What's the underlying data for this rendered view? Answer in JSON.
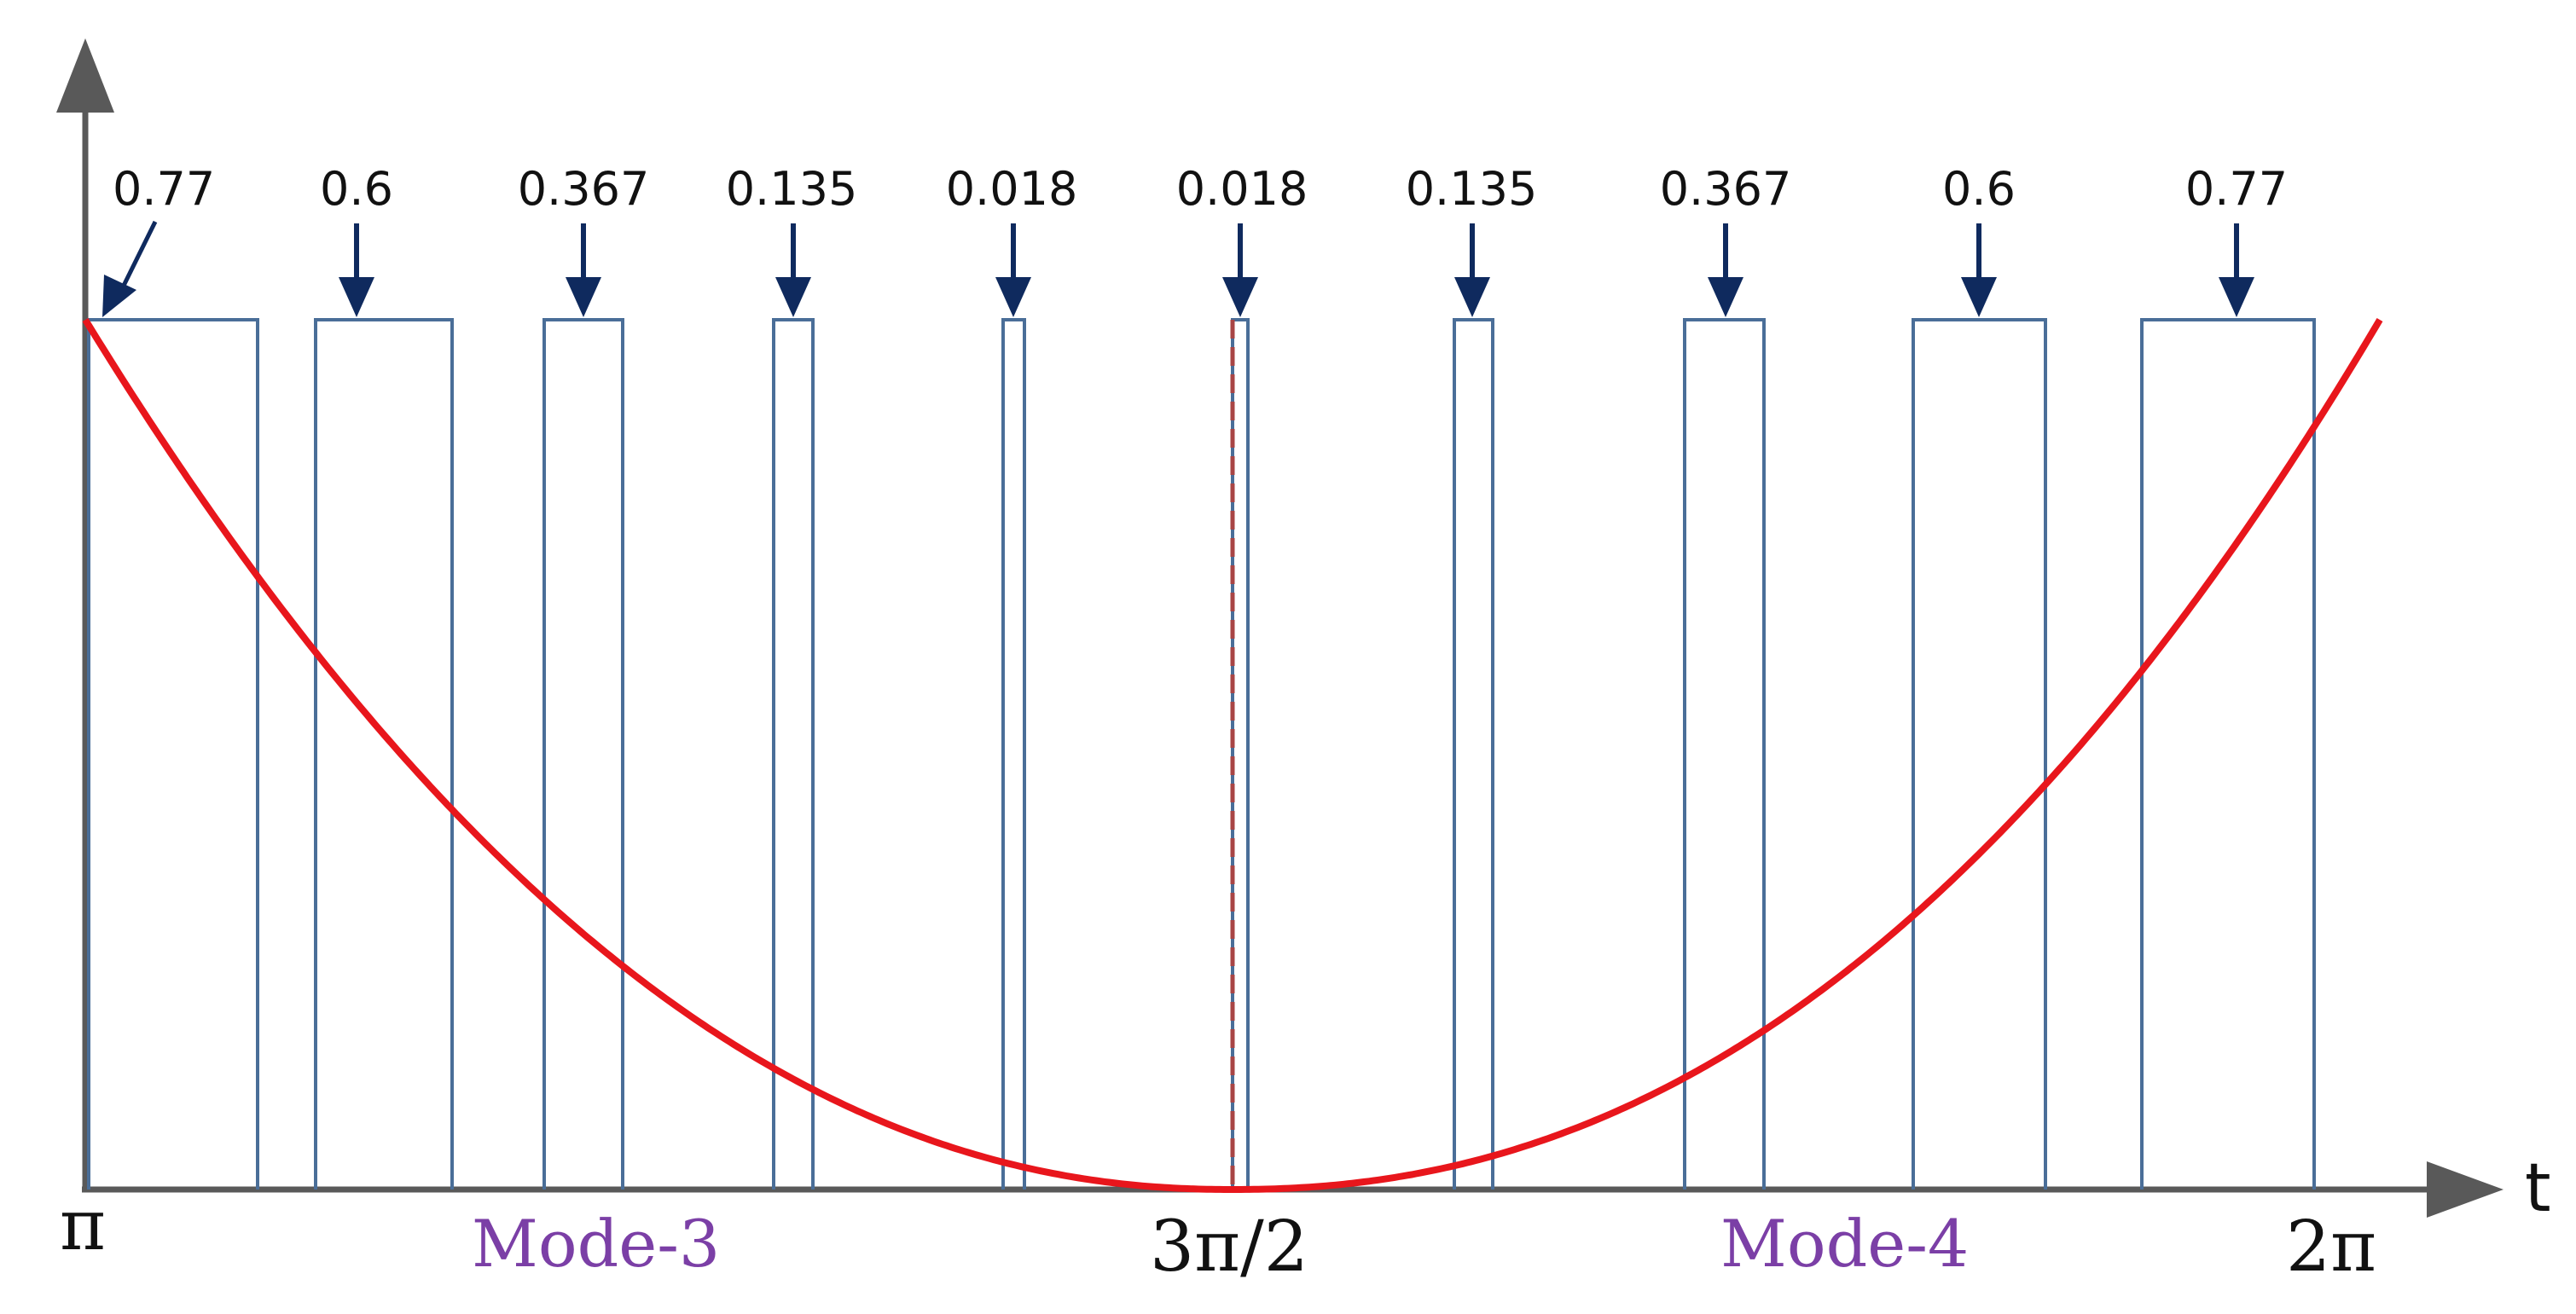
{
  "axis": {
    "x_name": "t",
    "ticks": [
      "π",
      "3π/2",
      "2π"
    ],
    "x_start_label": "π",
    "x_mid_label": "3π/2",
    "x_end_label": "2π"
  },
  "modes": [
    "Mode-3",
    "Mode-4"
  ],
  "colors": {
    "axis": "#595959",
    "pulse": "#4a6e98",
    "curve": "#e8161c",
    "arrow": "#0f2a5e",
    "mode_text": "#7b3fa6",
    "dashed_center": "#a84545"
  },
  "pulses": [
    {
      "label": "0.77"
    },
    {
      "label": "0.6"
    },
    {
      "label": "0.367"
    },
    {
      "label": "0.135"
    },
    {
      "label": "0.018"
    },
    {
      "label": "0.018"
    },
    {
      "label": "0.135"
    },
    {
      "label": "0.367"
    },
    {
      "label": "0.6"
    },
    {
      "label": "0.77"
    }
  ]
}
